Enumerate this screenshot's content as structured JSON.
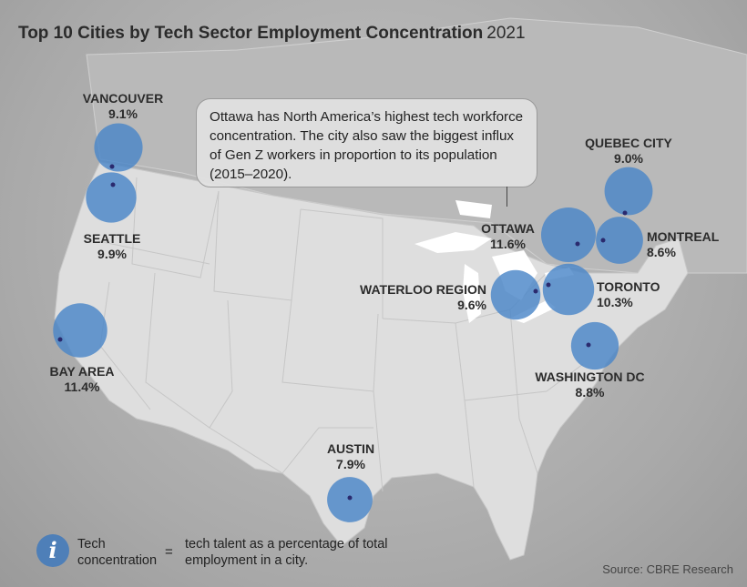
{
  "title": {
    "main": "Top 10 Cities by Tech Sector Employment Concentration",
    "year": "2021"
  },
  "callout": "Ottawa has North America’s highest tech workforce concentration. The city also saw the biggest influx of Gen Z workers in proportion to its population (2015–2020).",
  "cities": [
    {
      "id": "vancouver",
      "name": "VANCOUVER",
      "value": "9.1%",
      "pct": 9.1
    },
    {
      "id": "seattle",
      "name": "SEATTLE",
      "value": "9.9%",
      "pct": 9.9
    },
    {
      "id": "bay-area",
      "name": "BAY AREA",
      "value": "11.4%",
      "pct": 11.4
    },
    {
      "id": "austin",
      "name": "AUSTIN",
      "value": "7.9%",
      "pct": 7.9
    },
    {
      "id": "ottawa",
      "name": "OTTAWA",
      "value": "11.6%",
      "pct": 11.6
    },
    {
      "id": "waterloo-region",
      "name": "WATERLOO REGION",
      "value": "9.6%",
      "pct": 9.6
    },
    {
      "id": "toronto",
      "name": "TORONTO",
      "value": "10.3%",
      "pct": 10.3
    },
    {
      "id": "montreal",
      "name": "MONTREAL",
      "value": "8.6%",
      "pct": 8.6
    },
    {
      "id": "quebec-city",
      "name": "QUEBEC CITY",
      "value": "9.0%",
      "pct": 9.0
    },
    {
      "id": "washington-dc",
      "name": "WASHINGTON DC",
      "value": "8.8%",
      "pct": 8.8
    }
  ],
  "legend": {
    "icon": "info-icon",
    "term": "Tech concentration",
    "equals": "=",
    "definition": "tech talent as a percentage of total employment in a city."
  },
  "source": "Source: CBRE Research",
  "colors": {
    "bubble": "#4a86c8",
    "dot": "#2a2a6e",
    "land": "#dedede",
    "lakes": "#ffffff",
    "canada": "#b8b8b8"
  }
}
